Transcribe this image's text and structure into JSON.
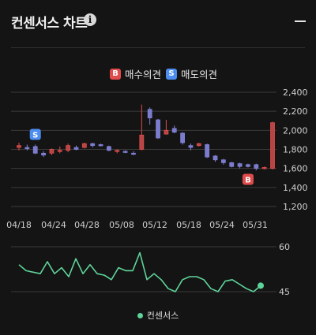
{
  "header": {
    "title": "컨센서스 차트",
    "info_label": "i"
  },
  "legend": {
    "buy_badge": "B",
    "buy_label": "매수의견",
    "sell_badge": "S",
    "sell_label": "매도의견"
  },
  "bottom_legend": {
    "label": "컨센서스"
  },
  "colors": {
    "up": "#e04b4b",
    "down": "#7f7fd6",
    "up_fill": "#b54646",
    "down_fill": "#7c7ccc",
    "consensus": "#5fd49a",
    "background": "#141414",
    "grid": "#3a3a3a"
  },
  "chart_data": [
    {
      "type": "candlestick",
      "x_labels": [
        "04/18",
        "04/24",
        "04/28",
        "05/08",
        "05/12",
        "05/18",
        "05/24",
        "05/31"
      ],
      "y_ticks": [
        "2,400",
        "2,200",
        "2,000",
        "1,800",
        "1,600",
        "1,400",
        "1,200"
      ],
      "ylim": [
        1200,
        2400
      ],
      "candles": [
        {
          "o": 1820,
          "c": 1840,
          "h": 1870,
          "l": 1790
        },
        {
          "o": 1820,
          "c": 1810,
          "h": 1850,
          "l": 1790
        },
        {
          "o": 1830,
          "c": 1760,
          "h": 1850,
          "l": 1750
        },
        {
          "o": 1760,
          "c": 1740,
          "h": 1780,
          "l": 1720
        },
        {
          "o": 1760,
          "c": 1800,
          "h": 1810,
          "l": 1740
        },
        {
          "o": 1790,
          "c": 1790,
          "h": 1830,
          "l": 1760
        },
        {
          "o": 1790,
          "c": 1840,
          "h": 1860,
          "l": 1770
        },
        {
          "o": 1820,
          "c": 1800,
          "h": 1840,
          "l": 1790
        },
        {
          "o": 1820,
          "c": 1860,
          "h": 1870,
          "l": 1810
        },
        {
          "o": 1860,
          "c": 1840,
          "h": 1870,
          "l": 1820
        },
        {
          "o": 1850,
          "c": 1840,
          "h": 1860,
          "l": 1830
        },
        {
          "o": 1830,
          "c": 1790,
          "h": 1840,
          "l": 1780
        },
        {
          "o": 1780,
          "c": 1790,
          "h": 1800,
          "l": 1760
        },
        {
          "o": 1780,
          "c": 1770,
          "h": 1790,
          "l": 1760
        },
        {
          "o": 1760,
          "c": 1750,
          "h": 1780,
          "l": 1740
        },
        {
          "o": 1800,
          "c": 1950,
          "h": 2270,
          "l": 1790
        },
        {
          "o": 2220,
          "c": 2130,
          "h": 2240,
          "l": 2060
        },
        {
          "o": 2110,
          "c": 1920,
          "h": 2120,
          "l": 1910
        },
        {
          "o": 1960,
          "c": 2000,
          "h": 2110,
          "l": 1960
        },
        {
          "o": 2020,
          "c": 1980,
          "h": 2050,
          "l": 1970
        },
        {
          "o": 1970,
          "c": 1870,
          "h": 1980,
          "l": 1850
        },
        {
          "o": 1840,
          "c": 1820,
          "h": 1860,
          "l": 1790
        },
        {
          "o": 1840,
          "c": 1860,
          "h": 1870,
          "l": 1830
        },
        {
          "o": 1850,
          "c": 1720,
          "h": 1860,
          "l": 1710
        },
        {
          "o": 1730,
          "c": 1690,
          "h": 1740,
          "l": 1670
        },
        {
          "o": 1690,
          "c": 1660,
          "h": 1700,
          "l": 1640
        },
        {
          "o": 1660,
          "c": 1620,
          "h": 1670,
          "l": 1610
        },
        {
          "o": 1650,
          "c": 1620,
          "h": 1660,
          "l": 1600
        },
        {
          "o": 1640,
          "c": 1620,
          "h": 1650,
          "l": 1610
        },
        {
          "o": 1640,
          "c": 1600,
          "h": 1650,
          "l": 1580
        },
        {
          "o": 1600,
          "c": 1610,
          "h": 1620,
          "l": 1590
        },
        {
          "o": 1600,
          "c": 2080,
          "h": 2090,
          "l": 1590
        }
      ],
      "markers": [
        {
          "type": "sell",
          "label": "S",
          "index": 2
        },
        {
          "type": "buy",
          "label": "B",
          "index": 28
        }
      ]
    },
    {
      "type": "line",
      "series": [
        {
          "name": "컨센서스",
          "values": [
            54,
            52,
            51.5,
            51,
            55,
            51,
            53,
            50,
            56,
            51,
            54,
            51,
            50.5,
            49,
            53,
            52,
            52,
            58,
            49,
            51,
            49,
            46,
            45,
            49,
            50,
            50,
            49,
            46,
            45,
            48.5,
            49,
            47.5,
            46,
            45,
            47
          ]
        }
      ],
      "y_ticks": [
        "60",
        "45"
      ],
      "ylim": [
        45,
        60
      ]
    }
  ]
}
